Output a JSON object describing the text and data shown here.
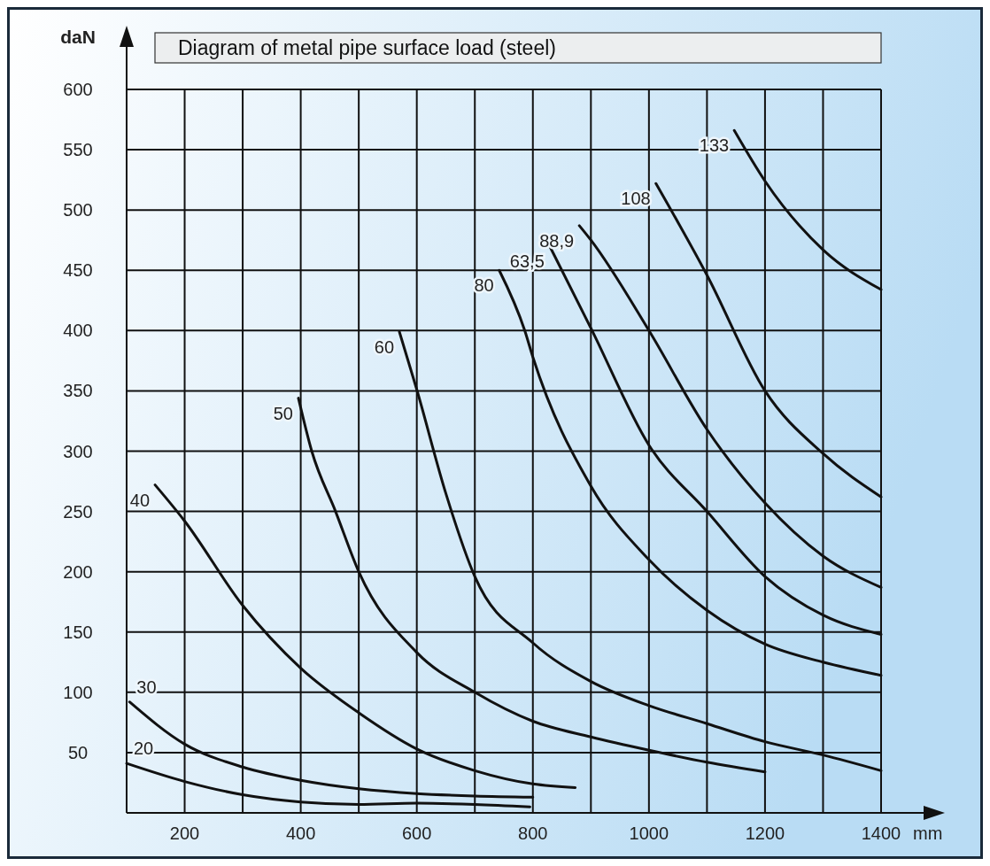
{
  "chart_data": {
    "type": "line",
    "title": "Diagram of metal pipe surface load (steel)",
    "xlabel": "mm",
    "ylabel": "daN",
    "xlim": [
      100,
      1400
    ],
    "ylim": [
      0,
      600
    ],
    "xticks": [
      {
        "value": 100,
        "label": null
      },
      200,
      {
        "value": 300,
        "label": null
      },
      400,
      {
        "value": 500,
        "label": null
      },
      600,
      {
        "value": 700,
        "label": null
      },
      800,
      {
        "value": 900,
        "label": null
      },
      1000,
      {
        "value": 1100,
        "label": null
      },
      1200,
      {
        "value": 1300,
        "label": null
      },
      1400
    ],
    "yticks": [
      {
        "value": 0,
        "label": null
      },
      50,
      100,
      150,
      200,
      250,
      300,
      350,
      400,
      450,
      500,
      550,
      600
    ],
    "grid": true,
    "line_style": "solid",
    "series": [
      {
        "name": "20",
        "color": "#111111",
        "x": [
          100,
          200,
          300,
          400,
          500,
          600,
          700,
          795
        ],
        "values": [
          41,
          26,
          15,
          9,
          7,
          8,
          7,
          5
        ]
      },
      {
        "name": "30",
        "color": "#111111",
        "x": [
          105,
          200,
          300,
          400,
          500,
          600,
          700,
          800
        ],
        "values": [
          92,
          57,
          38,
          27,
          20,
          16,
          14,
          13
        ]
      },
      {
        "name": "40",
        "color": "#111111",
        "x": [
          149,
          200,
          300,
          400,
          500,
          600,
          700,
          800,
          873
        ],
        "values": [
          272,
          242,
          172,
          120,
          83,
          53,
          35,
          24,
          21
        ]
      },
      {
        "name": "50",
        "color": "#111111",
        "x": [
          396,
          419,
          460,
          500,
          600,
          700,
          800,
          900,
          1000,
          1100,
          1200
        ],
        "values": [
          344,
          300,
          250,
          200,
          133,
          100,
          76,
          63,
          52,
          42,
          34
        ]
      },
      {
        "name": "60",
        "color": "#111111",
        "x": [
          570,
          600,
          650,
          700,
          800,
          900,
          1000,
          1100,
          1200,
          1300,
          1400
        ],
        "values": [
          399,
          351,
          265,
          196,
          141,
          109,
          89,
          74,
          59,
          48,
          35
        ]
      },
      {
        "name": "80",
        "color": "#111111",
        "x": [
          742,
          786,
          800,
          900,
          1000,
          1100,
          1200,
          1300,
          1400
        ],
        "values": [
          450,
          400,
          378,
          271,
          210,
          168,
          140,
          125,
          114
        ]
      },
      {
        "name": "63,5",
        "color": "#111111",
        "x": [
          829,
          900,
          1000,
          1100,
          1200,
          1300,
          1400
        ],
        "values": [
          470,
          402,
          305,
          250,
          196,
          164,
          148
        ]
      },
      {
        "name": "88,9",
        "color": "#111111",
        "x": [
          880,
          900,
          1000,
          1100,
          1200,
          1300,
          1400
        ],
        "values": [
          487,
          475,
          400,
          318,
          257,
          213,
          187
        ]
      },
      {
        "name": "108",
        "color": "#111111",
        "x": [
          1012,
          1100,
          1200,
          1300,
          1400
        ],
        "values": [
          522,
          446,
          350,
          298,
          262
        ]
      },
      {
        "name": "133",
        "color": "#111111",
        "x": [
          1147,
          1200,
          1300,
          1400
        ],
        "values": [
          566,
          524,
          467,
          434
        ]
      }
    ]
  }
}
